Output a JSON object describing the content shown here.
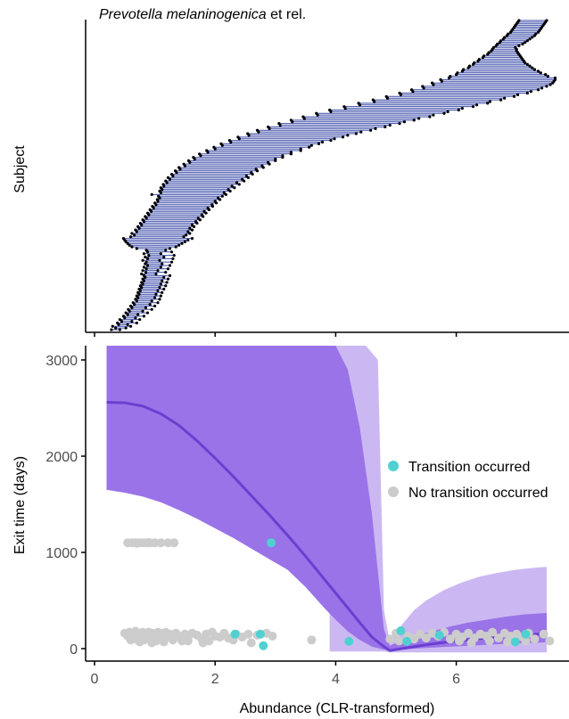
{
  "colors": {
    "segment_line": "#3b4ba8",
    "segment_dot": "#000000",
    "band_outer": "#cbb8f2",
    "band_inner": "#9a73e8",
    "curve": "#6a3fd0",
    "transition": "#4fd1d1",
    "no_transition": "#cccccc",
    "axis": "#000000",
    "tick_label": "#4d4d4d"
  },
  "chart_data": [
    {
      "type": "dumbbell",
      "title_italic": "Prevotella melaninogenica",
      "title_rest": " et rel.",
      "xlabel": "",
      "ylabel": "Subject",
      "xlim": [
        -0.2,
        7.6
      ],
      "xticks": [
        0,
        2,
        4,
        6
      ],
      "subjects": [
        [
          0.28,
          0.42
        ],
        [
          0.35,
          0.52
        ],
        [
          0.3,
          0.6
        ],
        [
          0.4,
          0.55
        ],
        [
          0.38,
          0.7
        ],
        [
          0.45,
          0.62
        ],
        [
          0.42,
          0.75
        ],
        [
          0.5,
          0.68
        ],
        [
          0.48,
          0.82
        ],
        [
          0.55,
          0.72
        ],
        [
          0.52,
          0.88
        ],
        [
          0.58,
          0.8
        ],
        [
          0.56,
          0.95
        ],
        [
          0.62,
          0.85
        ],
        [
          0.6,
          1.0
        ],
        [
          0.66,
          0.92
        ],
        [
          0.64,
          1.05
        ],
        [
          0.7,
          0.95
        ],
        [
          0.68,
          1.08
        ],
        [
          0.72,
          1.0
        ],
        [
          0.7,
          1.1
        ],
        [
          0.74,
          1.02
        ],
        [
          0.72,
          1.12
        ],
        [
          0.76,
          1.05
        ],
        [
          0.74,
          1.15
        ],
        [
          0.78,
          1.08
        ],
        [
          0.76,
          1.18
        ],
        [
          0.8,
          1.1
        ],
        [
          0.78,
          1.2
        ],
        [
          0.82,
          1.12
        ],
        [
          0.8,
          1.22
        ],
        [
          0.84,
          1.15
        ],
        [
          0.82,
          1.25
        ],
        [
          0.78,
          1.02
        ],
        [
          0.85,
          1.18
        ],
        [
          0.8,
          1.05
        ],
        [
          0.86,
          1.22
        ],
        [
          0.82,
          1.1
        ],
        [
          0.88,
          1.25
        ],
        [
          0.84,
          1.12
        ],
        [
          0.86,
          1.28
        ],
        [
          0.8,
          1.08
        ],
        [
          0.88,
          1.3
        ],
        [
          0.84,
          1.15
        ],
        [
          0.9,
          1.32
        ],
        [
          0.82,
          1.1
        ],
        [
          0.88,
          1.28
        ],
        [
          0.86,
          1.18
        ],
        [
          0.7,
          1.25
        ],
        [
          0.62,
          1.35
        ],
        [
          0.58,
          1.4
        ],
        [
          0.55,
          1.45
        ],
        [
          0.52,
          1.5
        ],
        [
          0.5,
          1.55
        ],
        [
          0.48,
          1.62
        ],
        [
          0.6,
          1.48
        ],
        [
          0.66,
          1.52
        ],
        [
          0.62,
          1.58
        ],
        [
          0.7,
          1.55
        ],
        [
          0.68,
          1.62
        ],
        [
          0.74,
          1.58
        ],
        [
          0.72,
          1.65
        ],
        [
          0.78,
          1.62
        ],
        [
          0.76,
          1.7
        ],
        [
          0.82,
          1.68
        ],
        [
          0.8,
          1.75
        ],
        [
          0.86,
          1.72
        ],
        [
          0.84,
          1.8
        ],
        [
          0.9,
          1.78
        ],
        [
          0.88,
          1.85
        ],
        [
          0.94,
          1.82
        ],
        [
          0.92,
          1.9
        ],
        [
          0.98,
          1.88
        ],
        [
          0.96,
          1.96
        ],
        [
          1.02,
          1.95
        ],
        [
          1.0,
          2.02
        ],
        [
          1.05,
          2.0
        ],
        [
          1.04,
          2.08
        ],
        [
          1.08,
          2.05
        ],
        [
          1.06,
          2.12
        ],
        [
          0.95,
          2.18
        ],
        [
          1.1,
          2.15
        ],
        [
          1.08,
          2.25
        ],
        [
          1.12,
          2.22
        ],
        [
          1.1,
          2.32
        ],
        [
          1.15,
          2.28
        ],
        [
          1.14,
          2.4
        ],
        [
          1.2,
          2.36
        ],
        [
          1.18,
          2.48
        ],
        [
          1.25,
          2.45
        ],
        [
          1.22,
          2.55
        ],
        [
          1.3,
          2.52
        ],
        [
          1.28,
          2.62
        ],
        [
          1.36,
          2.6
        ],
        [
          1.34,
          2.7
        ],
        [
          1.42,
          2.68
        ],
        [
          1.4,
          2.8
        ],
        [
          1.5,
          2.78
        ],
        [
          1.48,
          2.9
        ],
        [
          1.58,
          2.88
        ],
        [
          1.56,
          3.0
        ],
        [
          1.66,
          3.0
        ],
        [
          1.64,
          3.12
        ],
        [
          1.76,
          3.12
        ],
        [
          1.74,
          3.26
        ],
        [
          1.88,
          3.26
        ],
        [
          1.86,
          3.42
        ],
        [
          2.0,
          3.42
        ],
        [
          1.98,
          3.56
        ],
        [
          2.12,
          3.6
        ],
        [
          2.1,
          3.72
        ],
        [
          2.26,
          3.78
        ],
        [
          2.24,
          3.92
        ],
        [
          2.4,
          3.98
        ],
        [
          2.38,
          4.12
        ],
        [
          2.56,
          4.2
        ],
        [
          2.54,
          4.34
        ],
        [
          2.72,
          4.42
        ],
        [
          2.7,
          4.58
        ],
        [
          2.9,
          4.66
        ],
        [
          2.88,
          4.82
        ],
        [
          3.08,
          4.9
        ],
        [
          3.06,
          5.06
        ],
        [
          3.28,
          5.14
        ],
        [
          3.26,
          5.3
        ],
        [
          3.48,
          5.38
        ],
        [
          3.46,
          5.56
        ],
        [
          3.7,
          5.62
        ],
        [
          3.68,
          5.8
        ],
        [
          3.92,
          5.86
        ],
        [
          3.9,
          6.04
        ],
        [
          4.16,
          6.1
        ],
        [
          4.14,
          6.28
        ],
        [
          4.4,
          6.34
        ],
        [
          4.38,
          6.52
        ],
        [
          4.64,
          6.56
        ],
        [
          4.62,
          6.74
        ],
        [
          4.86,
          6.8
        ],
        [
          4.84,
          6.96
        ],
        [
          5.08,
          7.02
        ],
        [
          5.06,
          7.18
        ],
        [
          5.28,
          7.24
        ],
        [
          5.26,
          7.36
        ],
        [
          5.46,
          7.42
        ],
        [
          5.44,
          7.5
        ],
        [
          5.62,
          7.56
        ],
        [
          5.6,
          7.6
        ],
        [
          5.76,
          7.62
        ],
        [
          5.74,
          7.64
        ],
        [
          5.88,
          7.64
        ],
        [
          5.9,
          7.52
        ],
        [
          6.0,
          7.48
        ],
        [
          6.02,
          7.4
        ],
        [
          6.1,
          7.36
        ],
        [
          6.12,
          7.3
        ],
        [
          6.2,
          7.26
        ],
        [
          6.22,
          7.22
        ],
        [
          6.28,
          7.18
        ],
        [
          6.3,
          7.14
        ],
        [
          6.36,
          7.12
        ],
        [
          6.38,
          7.1
        ],
        [
          6.44,
          7.08
        ],
        [
          6.46,
          7.06
        ],
        [
          6.52,
          7.04
        ],
        [
          6.54,
          7.02
        ],
        [
          6.58,
          7.0
        ],
        [
          6.6,
          7.0
        ],
        [
          6.62,
          6.98
        ],
        [
          6.66,
          7.04
        ],
        [
          6.68,
          7.1
        ],
        [
          6.72,
          7.14
        ],
        [
          6.74,
          7.18
        ],
        [
          6.78,
          7.22
        ],
        [
          6.8,
          7.26
        ],
        [
          6.84,
          7.3
        ],
        [
          6.86,
          7.32
        ],
        [
          6.9,
          7.36
        ],
        [
          6.92,
          7.38
        ],
        [
          6.94,
          7.4
        ],
        [
          6.96,
          7.42
        ],
        [
          6.98,
          7.44
        ],
        [
          7.0,
          7.46
        ],
        [
          7.02,
          7.48
        ],
        [
          7.04,
          7.5
        ]
      ]
    },
    {
      "type": "scatter",
      "xlabel": "Abundance (CLR-transformed)",
      "ylabel": "Exit time (days)",
      "xlim": [
        -0.2,
        7.6
      ],
      "ylim": [
        -150,
        3150
      ],
      "xticks": [
        0,
        2,
        4,
        6
      ],
      "yticks": [
        0,
        1000,
        2000,
        3000
      ],
      "legend_position": "right",
      "legend": {
        "transition_label": "Transition occurred",
        "no_transition_label": "No transition occurred"
      },
      "curve": {
        "x": [
          0.2,
          0.5,
          0.8,
          1.1,
          1.4,
          1.7,
          2.0,
          2.3,
          2.6,
          2.9,
          3.2,
          3.5,
          3.8,
          4.1,
          4.4,
          4.6,
          4.8,
          4.9,
          5.2,
          5.5,
          5.8,
          6.1,
          6.4,
          6.7,
          7.0,
          7.3,
          7.5
        ],
        "y": [
          2560,
          2555,
          2520,
          2440,
          2320,
          2160,
          1980,
          1790,
          1590,
          1390,
          1180,
          960,
          730,
          500,
          270,
          120,
          20,
          -20,
          10,
          40,
          65,
          85,
          105,
          120,
          135,
          148,
          155
        ]
      },
      "band_inner": {
        "x": [
          0.2,
          0.5,
          0.8,
          1.1,
          1.4,
          1.7,
          2.0,
          2.3,
          2.6,
          2.9,
          3.2,
          3.5,
          3.8,
          4.0,
          4.2,
          4.4,
          4.6,
          4.8,
          4.9,
          5.1,
          5.3,
          5.6,
          5.9,
          6.2,
          6.5,
          6.8,
          7.1,
          7.5
        ],
        "upper": [
          3150,
          3150,
          3150,
          3150,
          3150,
          3150,
          3150,
          3150,
          3150,
          3150,
          3150,
          3150,
          3150,
          3150,
          2900,
          2300,
          1400,
          200,
          30,
          90,
          130,
          180,
          230,
          270,
          300,
          330,
          355,
          370
        ],
        "lower": [
          1650,
          1620,
          1580,
          1520,
          1440,
          1350,
          1250,
          1150,
          1040,
          930,
          820,
          640,
          430,
          300,
          180,
          90,
          20,
          -10,
          -20,
          -10,
          0,
          10,
          20,
          30,
          40,
          50,
          58,
          65
        ]
      },
      "band_outer": {
        "x": [
          3.9,
          4.1,
          4.3,
          4.5,
          4.7,
          4.8,
          4.9,
          5.1,
          5.3,
          5.5,
          5.8,
          6.1,
          6.4,
          6.7,
          7.0,
          7.3,
          7.5
        ],
        "upper": [
          3150,
          3150,
          3150,
          3150,
          3000,
          400,
          60,
          250,
          400,
          500,
          610,
          690,
          750,
          790,
          820,
          840,
          850
        ],
        "lower": [
          -30,
          -30,
          -30,
          -30,
          -30,
          -30,
          -40,
          -40,
          -40,
          -40,
          -40,
          -40,
          -40,
          -40,
          -40,
          -40,
          -40
        ]
      },
      "no_transition_points": [
        [
          0.55,
          1100
        ],
        [
          0.62,
          1100
        ],
        [
          0.68,
          1100
        ],
        [
          0.74,
          1100
        ],
        [
          0.8,
          1100
        ],
        [
          0.86,
          1100
        ],
        [
          0.92,
          1100
        ],
        [
          1.0,
          1100
        ],
        [
          1.1,
          1100
        ],
        [
          1.22,
          1100
        ],
        [
          1.32,
          1100
        ],
        [
          0.7,
          1095
        ],
        [
          0.9,
          1102
        ],
        [
          0.5,
          160
        ],
        [
          0.55,
          130
        ],
        [
          0.58,
          170
        ],
        [
          0.62,
          110
        ],
        [
          0.65,
          150
        ],
        [
          0.68,
          180
        ],
        [
          0.7,
          100
        ],
        [
          0.72,
          140
        ],
        [
          0.75,
          160
        ],
        [
          0.78,
          120
        ],
        [
          0.8,
          170
        ],
        [
          0.82,
          90
        ],
        [
          0.85,
          150
        ],
        [
          0.88,
          130
        ],
        [
          0.9,
          170
        ],
        [
          0.92,
          100
        ],
        [
          0.95,
          160
        ],
        [
          0.98,
          120
        ],
        [
          1.0,
          150
        ],
        [
          1.02,
          80
        ],
        [
          1.05,
          170
        ],
        [
          1.08,
          130
        ],
        [
          1.1,
          160
        ],
        [
          1.12,
          100
        ],
        [
          1.15,
          140
        ],
        [
          1.18,
          170
        ],
        [
          1.2,
          120
        ],
        [
          1.25,
          150
        ],
        [
          1.3,
          110
        ],
        [
          1.35,
          160
        ],
        [
          1.4,
          130
        ],
        [
          1.45,
          80
        ],
        [
          1.5,
          150
        ],
        [
          1.55,
          120
        ],
        [
          1.62,
          160
        ],
        [
          1.7,
          140
        ],
        [
          1.78,
          100
        ],
        [
          1.85,
          150
        ],
        [
          1.9,
          80
        ],
        [
          1.95,
          170
        ],
        [
          2.0,
          130
        ],
        [
          2.08,
          120
        ],
        [
          2.15,
          160
        ],
        [
          2.22,
          110
        ],
        [
          2.35,
          150
        ],
        [
          2.45,
          120
        ],
        [
          2.55,
          150
        ],
        [
          2.7,
          140
        ],
        [
          2.85,
          160
        ],
        [
          2.95,
          130
        ],
        [
          0.6,
          90
        ],
        [
          0.75,
          70
        ],
        [
          0.95,
          60
        ],
        [
          1.15,
          70
        ],
        [
          1.3,
          90
        ],
        [
          1.55,
          80
        ],
        [
          1.8,
          60
        ],
        [
          2.3,
          90
        ],
        [
          2.6,
          60
        ],
        [
          3.6,
          90
        ],
        [
          4.9,
          100
        ],
        [
          5.0,
          160
        ],
        [
          5.05,
          80
        ],
        [
          5.2,
          130
        ],
        [
          5.3,
          100
        ],
        [
          5.4,
          150
        ],
        [
          5.5,
          110
        ],
        [
          5.6,
          160
        ],
        [
          5.7,
          130
        ],
        [
          5.8,
          170
        ],
        [
          5.9,
          100
        ],
        [
          6.0,
          150
        ],
        [
          6.1,
          120
        ],
        [
          6.2,
          160
        ],
        [
          6.3,
          110
        ],
        [
          6.4,
          150
        ],
        [
          6.5,
          130
        ],
        [
          6.6,
          170
        ],
        [
          6.7,
          110
        ],
        [
          6.8,
          160
        ],
        [
          6.9,
          130
        ],
        [
          7.0,
          150
        ],
        [
          7.1,
          120
        ],
        [
          7.2,
          160
        ],
        [
          7.3,
          100
        ],
        [
          7.45,
          150
        ],
        [
          7.55,
          80
        ],
        [
          6.05,
          80
        ],
        [
          6.25,
          60
        ],
        [
          6.55,
          80
        ],
        [
          6.85,
          70
        ],
        [
          7.15,
          80
        ]
      ],
      "transition_points": [
        [
          2.93,
          1100
        ],
        [
          2.33,
          150
        ],
        [
          2.75,
          150
        ],
        [
          2.8,
          30
        ],
        [
          4.22,
          75
        ],
        [
          5.08,
          185
        ],
        [
          5.18,
          75
        ],
        [
          5.72,
          140
        ],
        [
          6.98,
          70
        ],
        [
          7.15,
          150
        ]
      ]
    }
  ]
}
